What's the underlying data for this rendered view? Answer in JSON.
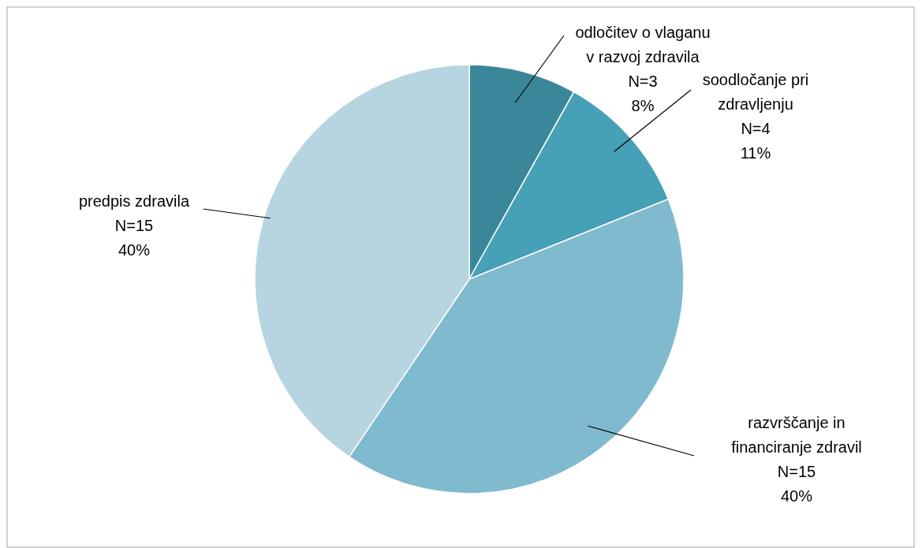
{
  "chart_data": {
    "type": "pie",
    "categories": [
      "odločitev o vlaganu\nv razvoj zdravila",
      "soodločanje pri\nzdravljenju",
      "razvrščanje in\nfinanciranje zdravil",
      "predpis zdravila"
    ],
    "values": [
      3,
      4,
      15,
      15
    ],
    "value_labels": [
      "N=3\n8%",
      "N=4\n11%",
      "N=15\n40%",
      "N=15\n40%"
    ],
    "colors": [
      "#3a8799",
      "#46a0b8",
      "#7fbace",
      "#b7d5e0"
    ]
  }
}
